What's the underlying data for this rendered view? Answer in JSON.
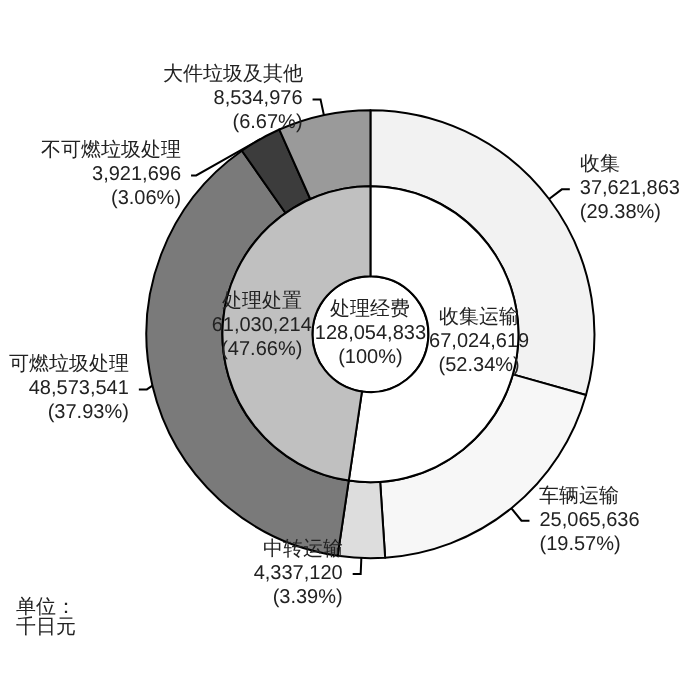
{
  "chart_data": [
    {
      "type": "donut",
      "legend": false,
      "annotations": [
        "单位：千日元"
      ],
      "categories": [
        "收集",
        "车辆运输",
        "中转运输",
        "可燃垃圾处理",
        "不可燃垃圾处理",
        "大件垃圾及其他"
      ],
      "values": [
        37621863,
        25065636,
        4337120,
        48573541,
        3921696,
        8534976
      ],
      "value_labels": [
        "37,621,863\n(29.38%)",
        "25,065,636\n(19.57%)",
        "4,337,120\n(3.39%)",
        "48,573,541\n(37.93%)",
        "3,921,696\n(3.06%)",
        "8,534,976\n(6.67%)"
      ],
      "colors": [
        "#f2f2f2",
        "#f7f7f7",
        "#dddddd",
        "#7a7a7a",
        "#3c3c3c",
        "#9a9a9a"
      ]
    },
    {
      "type": "donut",
      "legend": false,
      "categories": [
        "收集运输",
        "处理处置"
      ],
      "values": [
        67024619,
        61030214
      ],
      "value_labels": [
        "67,024,619\n(52.34%)",
        "61,030,214\n(47.66%)"
      ],
      "colors": [
        "#ffffff",
        "#c0c0c0"
      ]
    },
    {
      "type": "pie",
      "legend": false,
      "categories": [
        "处理经费"
      ],
      "values": [
        100
      ],
      "value_labels": [
        "128,054,833\n(100%)"
      ],
      "colors": [
        "#ffffff"
      ]
    }
  ]
}
